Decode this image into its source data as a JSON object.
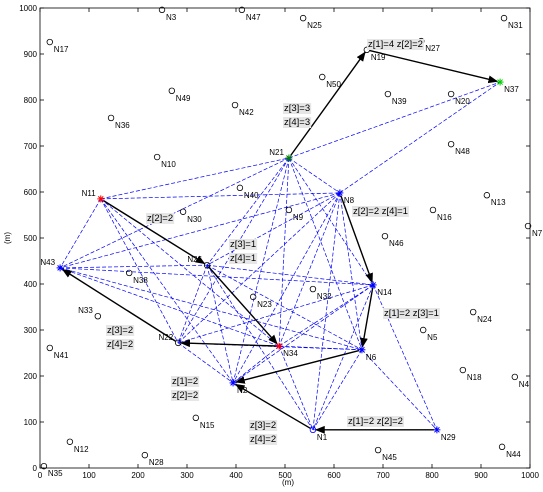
{
  "chart_data": {
    "type": "scatter",
    "xlabel": "(m)",
    "ylabel": "(m)",
    "xlim": [
      0,
      1000
    ],
    "ylim": [
      0,
      1000
    ],
    "xticks": [
      0,
      100,
      200,
      300,
      400,
      500,
      600,
      700,
      800,
      900,
      1000
    ],
    "yticks": [
      0,
      100,
      200,
      300,
      400,
      500,
      600,
      700,
      800,
      900,
      1000
    ],
    "points": [
      {
        "label": "N1",
        "x": 557,
        "y": 83,
        "marker": "o",
        "color": "#0000ff"
      },
      {
        "label": "N2",
        "x": 394,
        "y": 185,
        "marker": "*",
        "color": "#0000ff"
      },
      {
        "label": "N3",
        "x": 249,
        "y": 996,
        "marker": "o",
        "color": "#000000"
      },
      {
        "label": "N4",
        "x": 969,
        "y": 198,
        "marker": "o",
        "color": "#000000"
      },
      {
        "label": "N5",
        "x": 782,
        "y": 300,
        "marker": "o",
        "color": "#000000"
      },
      {
        "label": "N6",
        "x": 657,
        "y": 257,
        "marker": "*",
        "color": "#0000ff"
      },
      {
        "label": "N7",
        "x": 996,
        "y": 526,
        "marker": "o",
        "color": "#000000"
      },
      {
        "label": "N8",
        "x": 612,
        "y": 598,
        "marker": "*",
        "color": "#0000ff"
      },
      {
        "label": "N9",
        "x": 508,
        "y": 561,
        "marker": "o",
        "color": "#000000"
      },
      {
        "label": "N10",
        "x": 239,
        "y": 676,
        "marker": "o",
        "color": "#000000"
      },
      {
        "label": "N11",
        "x": 124,
        "y": 585,
        "marker": "*",
        "color": "#ff0000"
      },
      {
        "label": "N12",
        "x": 61,
        "y": 57,
        "marker": "o",
        "color": "#000000"
      },
      {
        "label": "N13",
        "x": 912,
        "y": 593,
        "marker": "o",
        "color": "#000000"
      },
      {
        "label": "N14",
        "x": 680,
        "y": 398,
        "marker": "*",
        "color": "#0000ff"
      },
      {
        "label": "N15",
        "x": 318,
        "y": 109,
        "marker": "o",
        "color": "#000000"
      },
      {
        "label": "N16",
        "x": 802,
        "y": 561,
        "marker": "o",
        "color": "#000000"
      },
      {
        "label": "N17",
        "x": 20,
        "y": 926,
        "marker": "o",
        "color": "#000000"
      },
      {
        "label": "N18",
        "x": 863,
        "y": 213,
        "marker": "o",
        "color": "#000000"
      },
      {
        "label": "N19",
        "x": 667,
        "y": 909,
        "marker": "o",
        "color": "#000000"
      },
      {
        "label": "N20",
        "x": 839,
        "y": 813,
        "marker": "o",
        "color": "#000000"
      },
      {
        "label": "N21",
        "x": 508,
        "y": 674,
        "marker": "*",
        "color": "#008000"
      },
      {
        "label": "N22",
        "x": 282,
        "y": 272,
        "marker": "o",
        "color": "#000000"
      },
      {
        "label": "N23",
        "x": 435,
        "y": 372,
        "marker": "o",
        "color": "#000000"
      },
      {
        "label": "N24",
        "x": 884,
        "y": 339,
        "marker": "o",
        "color": "#000000"
      },
      {
        "label": "N25",
        "x": 537,
        "y": 978,
        "marker": "o",
        "color": "#000000"
      },
      {
        "label": "N26",
        "x": 341,
        "y": 441,
        "marker": "o",
        "color": "#000000"
      },
      {
        "label": "N27",
        "x": 778,
        "y": 928,
        "marker": "o",
        "color": "#000000"
      },
      {
        "label": "N28",
        "x": 214,
        "y": 28,
        "marker": "o",
        "color": "#000000"
      },
      {
        "label": "N29",
        "x": 810,
        "y": 83,
        "marker": "*",
        "color": "#0000ff"
      },
      {
        "label": "N30",
        "x": 292,
        "y": 557,
        "marker": "o",
        "color": "#000000"
      },
      {
        "label": "N31",
        "x": 947,
        "y": 978,
        "marker": "o",
        "color": "#000000"
      },
      {
        "label": "N32",
        "x": 557,
        "y": 389,
        "marker": "o",
        "color": "#000000"
      },
      {
        "label": "N33",
        "x": 118,
        "y": 330,
        "marker": "o",
        "color": "#000000"
      },
      {
        "label": "N34",
        "x": 488,
        "y": 265,
        "marker": "*",
        "color": "#ff0000"
      },
      {
        "label": "N35",
        "x": 8,
        "y": 4,
        "marker": "o",
        "color": "#000000"
      },
      {
        "label": "N36",
        "x": 145,
        "y": 761,
        "marker": "o",
        "color": "#000000"
      },
      {
        "label": "N37",
        "x": 939,
        "y": 839,
        "marker": "*",
        "color": "#00cc00"
      },
      {
        "label": "N38",
        "x": 182,
        "y": 424,
        "marker": "o",
        "color": "#000000"
      },
      {
        "label": "N39",
        "x": 710,
        "y": 813,
        "marker": "o",
        "color": "#000000"
      },
      {
        "label": "N40",
        "x": 408,
        "y": 609,
        "marker": "o",
        "color": "#000000"
      },
      {
        "label": "N41",
        "x": 20,
        "y": 261,
        "marker": "o",
        "color": "#000000"
      },
      {
        "label": "N42",
        "x": 398,
        "y": 789,
        "marker": "o",
        "color": "#000000"
      },
      {
        "label": "N43",
        "x": 41,
        "y": 435,
        "marker": "*",
        "color": "#0000ff"
      },
      {
        "label": "N44",
        "x": 943,
        "y": 46,
        "marker": "o",
        "color": "#000000"
      },
      {
        "label": "N45",
        "x": 690,
        "y": 39,
        "marker": "o",
        "color": "#000000"
      },
      {
        "label": "N46",
        "x": 704,
        "y": 504,
        "marker": "o",
        "color": "#000000"
      },
      {
        "label": "N47",
        "x": 412,
        "y": 996,
        "marker": "o",
        "color": "#000000"
      },
      {
        "label": "N48",
        "x": 839,
        "y": 704,
        "marker": "o",
        "color": "#000000"
      },
      {
        "label": "N49",
        "x": 269,
        "y": 820,
        "marker": "o",
        "color": "#000000"
      },
      {
        "label": "N50",
        "x": 576,
        "y": 850,
        "marker": "o",
        "color": "#000000"
      }
    ],
    "links": [
      [
        "N11",
        "N21"
      ],
      [
        "N11",
        "N8"
      ],
      [
        "N11",
        "N43"
      ],
      [
        "N11",
        "N22"
      ],
      [
        "N11",
        "N34"
      ],
      [
        "N11",
        "N2"
      ],
      [
        "N21",
        "N8"
      ],
      [
        "N21",
        "N26"
      ],
      [
        "N21",
        "N43"
      ],
      [
        "N21",
        "N14"
      ],
      [
        "N21",
        "N6"
      ],
      [
        "N21",
        "N34"
      ],
      [
        "N21",
        "N22"
      ],
      [
        "N21",
        "N2"
      ],
      [
        "N21",
        "N37"
      ],
      [
        "N8",
        "N37"
      ],
      [
        "N8",
        "N26"
      ],
      [
        "N8",
        "N43"
      ],
      [
        "N8",
        "N6"
      ],
      [
        "N8",
        "N34"
      ],
      [
        "N8",
        "N22"
      ],
      [
        "N8",
        "N2"
      ],
      [
        "N8",
        "N1"
      ],
      [
        "N43",
        "N14"
      ],
      [
        "N43",
        "N6"
      ],
      [
        "N43",
        "N34"
      ],
      [
        "N43",
        "N26"
      ],
      [
        "N26",
        "N14"
      ],
      [
        "N26",
        "N6"
      ],
      [
        "N26",
        "N2"
      ],
      [
        "N26",
        "N1"
      ],
      [
        "N26",
        "N22"
      ],
      [
        "N14",
        "N34"
      ],
      [
        "N14",
        "N22"
      ],
      [
        "N14",
        "N2"
      ],
      [
        "N14",
        "N1"
      ],
      [
        "N14",
        "N29"
      ],
      [
        "N6",
        "N22"
      ],
      [
        "N6",
        "N1"
      ],
      [
        "N6",
        "N29"
      ],
      [
        "N34",
        "N1"
      ],
      [
        "N34",
        "N2"
      ],
      [
        "N34",
        "N6"
      ],
      [
        "N1",
        "N29"
      ],
      [
        "N22",
        "N2"
      ]
    ],
    "routes": [
      [
        "N21",
        "N19"
      ],
      [
        "N19",
        "N37"
      ],
      [
        "N8",
        "N14"
      ],
      [
        "N14",
        "N6"
      ],
      [
        "N11",
        "N26"
      ],
      [
        "N26",
        "N34"
      ],
      [
        "N22",
        "N43"
      ],
      [
        "N34",
        "N22"
      ],
      [
        "N6",
        "N2"
      ],
      [
        "N29",
        "N1"
      ],
      [
        "N1",
        "N2"
      ]
    ],
    "link_color": "#0000ff",
    "route_color": "#000000",
    "annotations": [
      "z[1]=4 z[2]=2",
      "z[3]=3",
      "z[4]=3",
      "z[2]=2 z[4]=1",
      "z[2]=2",
      "z[3]=1",
      "z[4]=1",
      "z[1]=2 z[3]=1",
      "z[3]=2",
      "z[4]=2",
      "z[1]=2",
      "z[2]=2",
      "z[3]=2",
      "z[4]=2",
      "z[1]=2 z[2]=2"
    ]
  }
}
